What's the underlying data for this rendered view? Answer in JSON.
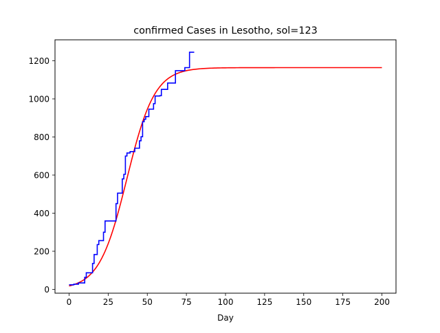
{
  "chart_data": {
    "type": "line",
    "title": "confirmed Cases in Lesotho, sol=123",
    "xlabel": "Day",
    "ylabel": "",
    "xlim": [
      -9,
      209
    ],
    "ylim": [
      -20,
      1310
    ],
    "x_ticks": [
      0,
      25,
      50,
      75,
      100,
      125,
      150,
      175,
      200
    ],
    "y_ticks": [
      0,
      200,
      400,
      600,
      800,
      1000,
      1200
    ],
    "grid": false,
    "legend": "none",
    "series": [
      {
        "color": "#0000ff",
        "step": true,
        "points": [
          [
            0,
            24
          ],
          [
            3,
            27
          ],
          [
            6,
            34
          ],
          [
            9,
            34
          ],
          [
            10,
            63
          ],
          [
            11,
            87
          ],
          [
            14,
            87
          ],
          [
            15,
            136
          ],
          [
            16,
            183
          ],
          [
            18,
            235
          ],
          [
            19,
            256
          ],
          [
            21,
            256
          ],
          [
            22,
            300
          ],
          [
            23,
            359
          ],
          [
            29,
            359
          ],
          [
            30,
            450
          ],
          [
            31,
            505
          ],
          [
            33,
            505
          ],
          [
            34,
            580
          ],
          [
            35,
            604
          ],
          [
            36,
            700
          ],
          [
            37,
            716
          ],
          [
            39,
            723
          ],
          [
            42,
            741
          ],
          [
            44,
            741
          ],
          [
            45,
            780
          ],
          [
            46,
            801
          ],
          [
            47,
            880
          ],
          [
            48,
            893
          ],
          [
            49,
            907
          ],
          [
            50,
            907
          ],
          [
            51,
            946
          ],
          [
            53,
            946
          ],
          [
            54,
            975
          ],
          [
            55,
            1015
          ],
          [
            57,
            1015
          ],
          [
            58,
            1017
          ],
          [
            59,
            1050
          ],
          [
            62,
            1050
          ],
          [
            63,
            1083
          ],
          [
            65,
            1083
          ],
          [
            67,
            1083
          ],
          [
            68,
            1148
          ],
          [
            70,
            1148
          ],
          [
            73,
            1148
          ],
          [
            74,
            1164
          ],
          [
            76,
            1164
          ],
          [
            77,
            1245
          ],
          [
            80,
            1245
          ]
        ]
      },
      {
        "color": "#ff0000",
        "model": "logistic",
        "K": 1164,
        "r": 0.1125,
        "x0": 37,
        "x_range": [
          0,
          200
        ]
      }
    ]
  }
}
